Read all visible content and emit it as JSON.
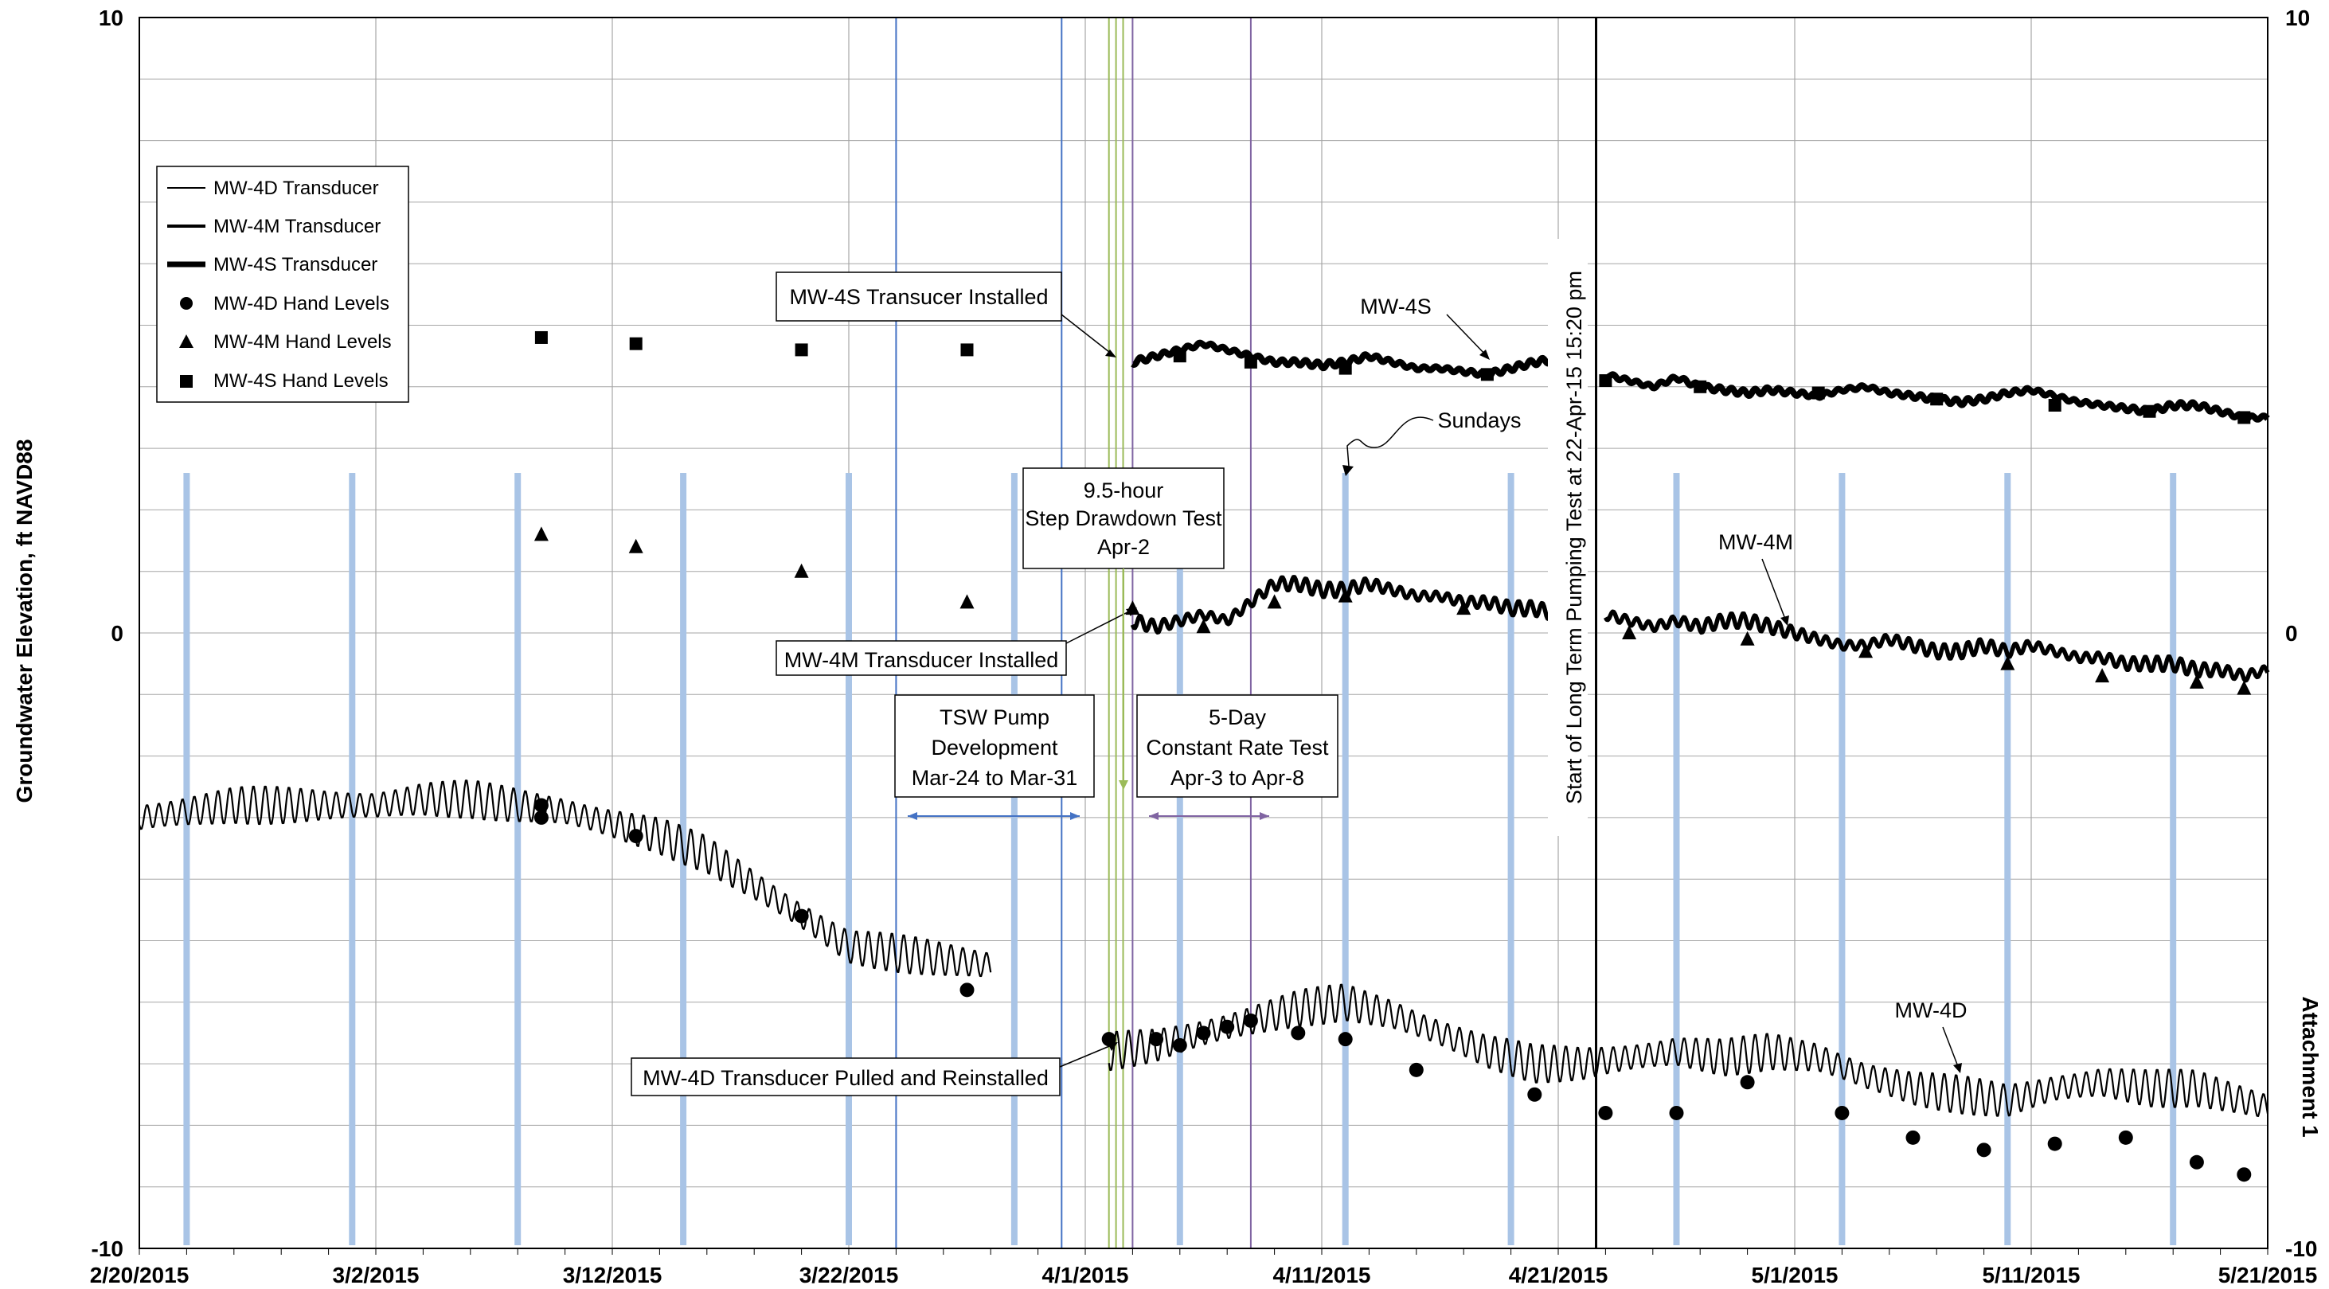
{
  "chart_data": {
    "type": "line",
    "title": "",
    "xlabel": "",
    "ylabel": "Groundwater Elevation, ft NAVD88",
    "side_label": "Attachment  1",
    "xlim": [
      "2015-02-20",
      "2015-05-21"
    ],
    "ylim": [
      -10,
      10
    ],
    "x_ticks": [
      "2/20/2015",
      "3/2/2015",
      "3/12/2015",
      "3/22/2015",
      "4/1/2015",
      "4/11/2015",
      "4/21/2015",
      "5/1/2015",
      "5/11/2015",
      "5/21/2015"
    ],
    "y_ticks": [
      10,
      0,
      -10
    ],
    "legend_position": "top-left",
    "legend": [
      {
        "label": "MW-4D Transducer",
        "kind": "line-thin"
      },
      {
        "label": "MW-4M Transducer",
        "kind": "line-medium"
      },
      {
        "label": "MW-4S Transducer",
        "kind": "line-thick"
      },
      {
        "label": "MW-4D Hand Levels",
        "kind": "circle"
      },
      {
        "label": "MW-4M Hand Levels",
        "kind": "triangle"
      },
      {
        "label": "MW-4S Hand Levels",
        "kind": "square"
      }
    ],
    "sundays": [
      "2015-02-22",
      "2015-03-01",
      "2015-03-08",
      "2015-03-15",
      "2015-03-22",
      "2015-03-29",
      "2015-04-05",
      "2015-04-12",
      "2015-04-19",
      "2015-04-26",
      "2015-05-03",
      "2015-05-10",
      "2015-05-17"
    ],
    "event_lines": [
      {
        "date": "2015-03-24",
        "color": "#4472c4"
      },
      {
        "date": "2015-03-31",
        "color": "#4472c4"
      },
      {
        "date": "2015-04-02",
        "color": "#9bbb59"
      },
      {
        "date": "2015-04-02.3",
        "color": "#9bbb59"
      },
      {
        "date": "2015-04-02.6",
        "color": "#9bbb59"
      },
      {
        "date": "2015-04-03",
        "color": "#8064a2"
      },
      {
        "date": "2015-04-08",
        "color": "#8064a2"
      }
    ],
    "series": [
      {
        "name": "MW-4S Transducer",
        "segments": [
          {
            "x": [
              "2015-04-03",
              "2015-04-04",
              "2015-04-05",
              "2015-04-06",
              "2015-04-07",
              "2015-04-08",
              "2015-04-09",
              "2015-04-10",
              "2015-04-11",
              "2015-04-12",
              "2015-04-13",
              "2015-04-14",
              "2015-04-15",
              "2015-04-16",
              "2015-04-17",
              "2015-04-18",
              "2015-04-19",
              "2015-04-20",
              "2015-04-21"
            ],
            "y": [
              4.4,
              4.5,
              4.6,
              4.7,
              4.6,
              4.5,
              4.4,
              4.4,
              4.35,
              4.4,
              4.5,
              4.4,
              4.3,
              4.3,
              4.25,
              4.2,
              4.3,
              4.4,
              4.45
            ]
          },
          {
            "x": [
              "2015-04-23",
              "2015-04-24",
              "2015-04-25",
              "2015-04-26",
              "2015-04-27",
              "2015-04-28",
              "2015-04-29",
              "2015-04-30",
              "2015-05-01",
              "2015-05-02",
              "2015-05-03",
              "2015-05-04",
              "2015-05-05",
              "2015-05-06",
              "2015-05-07",
              "2015-05-08",
              "2015-05-09",
              "2015-05-10",
              "2015-05-11",
              "2015-05-12",
              "2015-05-13",
              "2015-05-14",
              "2015-05-15",
              "2015-05-16",
              "2015-05-17",
              "2015-05-18",
              "2015-05-19",
              "2015-05-20",
              "2015-05-21"
            ],
            "y": [
              4.2,
              4.1,
              4.0,
              4.15,
              4.0,
              3.95,
              3.9,
              3.95,
              3.9,
              3.85,
              3.95,
              4.0,
              3.9,
              3.85,
              3.8,
              3.75,
              3.8,
              3.9,
              3.95,
              3.85,
              3.75,
              3.7,
              3.65,
              3.6,
              3.7,
              3.7,
              3.6,
              3.5,
              3.5
            ]
          }
        ]
      },
      {
        "name": "MW-4M Transducer",
        "segments": [
          {
            "x": [
              "2015-04-03",
              "2015-04-04",
              "2015-04-05",
              "2015-04-06",
              "2015-04-07",
              "2015-04-08",
              "2015-04-09",
              "2015-04-10",
              "2015-04-11",
              "2015-04-12",
              "2015-04-13",
              "2015-04-14",
              "2015-04-15",
              "2015-04-16",
              "2015-04-17",
              "2015-04-18",
              "2015-04-19",
              "2015-04-20",
              "2015-04-21"
            ],
            "y": [
              0.2,
              0.1,
              0.2,
              0.3,
              0.2,
              0.5,
              0.8,
              0.8,
              0.7,
              0.7,
              0.8,
              0.7,
              0.6,
              0.6,
              0.5,
              0.5,
              0.4,
              0.4,
              0.3
            ]
          },
          {
            "x": [
              "2015-04-23",
              "2015-04-24",
              "2015-04-25",
              "2015-04-26",
              "2015-04-27",
              "2015-04-28",
              "2015-04-29",
              "2015-04-30",
              "2015-05-01",
              "2015-05-02",
              "2015-05-03",
              "2015-05-04",
              "2015-05-05",
              "2015-05-06",
              "2015-05-07",
              "2015-05-08",
              "2015-05-09",
              "2015-05-10",
              "2015-05-11",
              "2015-05-12",
              "2015-05-13",
              "2015-05-14",
              "2015-05-15",
              "2015-05-16",
              "2015-05-17",
              "2015-05-18",
              "2015-05-19",
              "2015-05-20",
              "2015-05-21"
            ],
            "y": [
              0.3,
              0.2,
              0.1,
              0.2,
              0.1,
              0.2,
              0.2,
              0.1,
              0.0,
              -0.1,
              -0.2,
              -0.2,
              -0.1,
              -0.2,
              -0.3,
              -0.3,
              -0.2,
              -0.3,
              -0.2,
              -0.3,
              -0.4,
              -0.4,
              -0.5,
              -0.5,
              -0.5,
              -0.6,
              -0.6,
              -0.7,
              -0.6
            ]
          }
        ]
      },
      {
        "name": "MW-4D Transducer",
        "segments": [
          {
            "x": [
              "2015-02-20",
              "2015-02-22",
              "2015-02-24",
              "2015-02-26",
              "2015-02-28",
              "2015-03-02",
              "2015-03-04",
              "2015-03-06",
              "2015-03-08",
              "2015-03-10",
              "2015-03-12",
              "2015-03-14",
              "2015-03-16",
              "2015-03-18",
              "2015-03-20",
              "2015-03-22",
              "2015-03-24",
              "2015-03-26",
              "2015-03-28"
            ],
            "y": [
              -3.0,
              -2.9,
              -2.8,
              -2.8,
              -2.8,
              -2.8,
              -2.7,
              -2.7,
              -2.8,
              -2.9,
              -3.1,
              -3.3,
              -3.6,
              -4.1,
              -4.6,
              -5.1,
              -5.2,
              -5.3,
              -5.4
            ]
          },
          {
            "x": [
              "2015-04-02",
              "2015-04-04",
              "2015-04-06",
              "2015-04-08",
              "2015-04-10",
              "2015-04-12",
              "2015-04-14",
              "2015-04-16",
              "2015-04-18",
              "2015-04-20",
              "2015-04-22",
              "2015-04-24",
              "2015-04-26",
              "2015-04-28",
              "2015-04-30",
              "2015-05-02",
              "2015-05-04",
              "2015-05-06",
              "2015-05-08",
              "2015-05-10",
              "2015-05-12",
              "2015-05-14",
              "2015-05-16",
              "2015-05-18",
              "2015-05-20",
              "2015-05-21"
            ],
            "y": [
              -6.8,
              -6.7,
              -6.5,
              -6.3,
              -6.1,
              -6.0,
              -6.2,
              -6.5,
              -6.8,
              -7.0,
              -7.0,
              -6.9,
              -6.8,
              -6.9,
              -6.8,
              -6.9,
              -7.2,
              -7.4,
              -7.5,
              -7.6,
              -7.4,
              -7.3,
              -7.4,
              -7.4,
              -7.6,
              -7.7
            ]
          }
        ]
      }
    ],
    "hand_levels": [
      {
        "name": "MW-4S Hand Levels",
        "x": [
          "2015-03-09",
          "2015-03-13",
          "2015-03-20",
          "2015-03-27",
          "2015-04-05",
          "2015-04-08",
          "2015-04-12",
          "2015-04-18",
          "2015-04-23",
          "2015-04-27",
          "2015-05-02",
          "2015-05-07",
          "2015-05-12",
          "2015-05-16",
          "2015-05-20"
        ],
        "y": [
          4.8,
          4.7,
          4.6,
          4.6,
          4.5,
          4.4,
          4.3,
          4.2,
          4.1,
          4.0,
          3.9,
          3.8,
          3.7,
          3.6,
          3.5
        ]
      },
      {
        "name": "MW-4M Hand Levels",
        "x": [
          "2015-03-09",
          "2015-03-13",
          "2015-03-20",
          "2015-03-27",
          "2015-04-03",
          "2015-04-06",
          "2015-04-09",
          "2015-04-12",
          "2015-04-17",
          "2015-04-24",
          "2015-04-29",
          "2015-05-04",
          "2015-05-10",
          "2015-05-14",
          "2015-05-18",
          "2015-05-20"
        ],
        "y": [
          1.6,
          1.4,
          1.0,
          0.5,
          0.4,
          0.1,
          0.5,
          0.6,
          0.4,
          0.0,
          -0.1,
          -0.3,
          -0.5,
          -0.7,
          -0.8,
          -0.9
        ]
      },
      {
        "name": "MW-4D Hand Levels",
        "x": [
          "2015-03-09",
          "2015-03-09",
          "2015-03-13",
          "2015-03-20",
          "2015-03-27",
          "2015-04-02",
          "2015-04-04",
          "2015-04-05",
          "2015-04-06",
          "2015-04-07",
          "2015-04-08",
          "2015-04-10",
          "2015-04-12",
          "2015-04-15",
          "2015-04-20",
          "2015-04-23",
          "2015-04-26",
          "2015-04-29",
          "2015-05-03",
          "2015-05-06",
          "2015-05-09",
          "2015-05-12",
          "2015-05-15",
          "2015-05-18",
          "2015-05-20"
        ],
        "y": [
          -2.8,
          -3.0,
          -3.3,
          -4.6,
          -5.8,
          -6.6,
          -6.6,
          -6.7,
          -6.5,
          -6.4,
          -6.3,
          -6.5,
          -6.6,
          -7.1,
          -7.5,
          -7.8,
          -7.8,
          -7.3,
          -7.8,
          -8.2,
          -8.4,
          -8.3,
          -8.2,
          -8.6,
          -8.8
        ]
      }
    ],
    "annotations": {
      "mw4s_installed": "MW-4S Transucer Installed",
      "mw4s_label": "MW-4S",
      "sundays": "Sundays",
      "step_line1": "9.5-hour",
      "step_line2": "Step Drawdown Test",
      "step_line3": "Apr-2",
      "mw4m_installed": "MW-4M Transducer Installed",
      "tsw_line1": "TSW Pump",
      "tsw_line2": "Development",
      "tsw_line3": "Mar-24 to Mar-31",
      "crt_line1": "5-Day",
      "crt_line2": "Constant Rate Test",
      "crt_line3": "Apr-3 to Apr-8",
      "long_term": "Start of Long Term Pumping  Test at 22-Apr-15 15:20 pm",
      "mw4m_label": "MW-4M",
      "mw4d_reinstalled": "MW-4D Transducer Pulled and Reinstalled",
      "mw4d_label": "MW-4D"
    },
    "colors": {
      "sunday_bar": "#a9c4e6",
      "gridline": "#a6a6a6",
      "series": "#000000"
    }
  }
}
